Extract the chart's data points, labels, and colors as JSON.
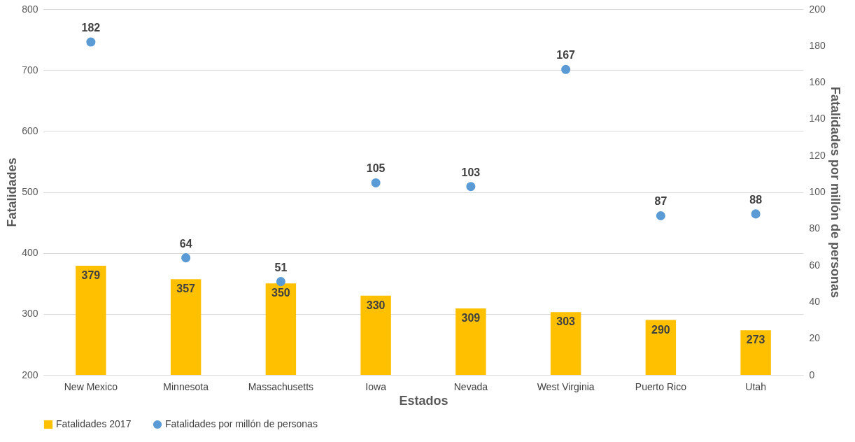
{
  "chart_data": {
    "type": "bar",
    "xlabel": "Estados",
    "ylabel": "Fatalidades",
    "y2label": "Fatalidades por millón de personas",
    "categories": [
      "New Mexico",
      "Minnesota",
      "Massachusetts",
      "Iowa",
      "Nevada",
      "West Virginia",
      "Puerto Rico",
      "Utah"
    ],
    "series": [
      {
        "name": "Fatalidades 2017",
        "color": "#ffc000",
        "values": [
          379,
          357,
          350,
          330,
          309,
          303,
          290,
          273
        ]
      },
      {
        "name": "Fatalidades por millón de personas",
        "type": "scatter",
        "axis": "y2",
        "color": "#5b9bd5",
        "values": [
          182,
          64,
          51,
          105,
          103,
          167,
          87,
          88
        ]
      }
    ],
    "ylim": [
      200,
      800
    ],
    "yticks": [
      200,
      300,
      400,
      500,
      600,
      700,
      800
    ],
    "y2lim": [
      0,
      200
    ],
    "y2ticks": [
      0,
      20,
      40,
      60,
      80,
      100,
      120,
      140,
      160,
      180,
      200
    ],
    "grid": "y",
    "legend": "bottom",
    "marker": "circle",
    "data_labels": true
  }
}
